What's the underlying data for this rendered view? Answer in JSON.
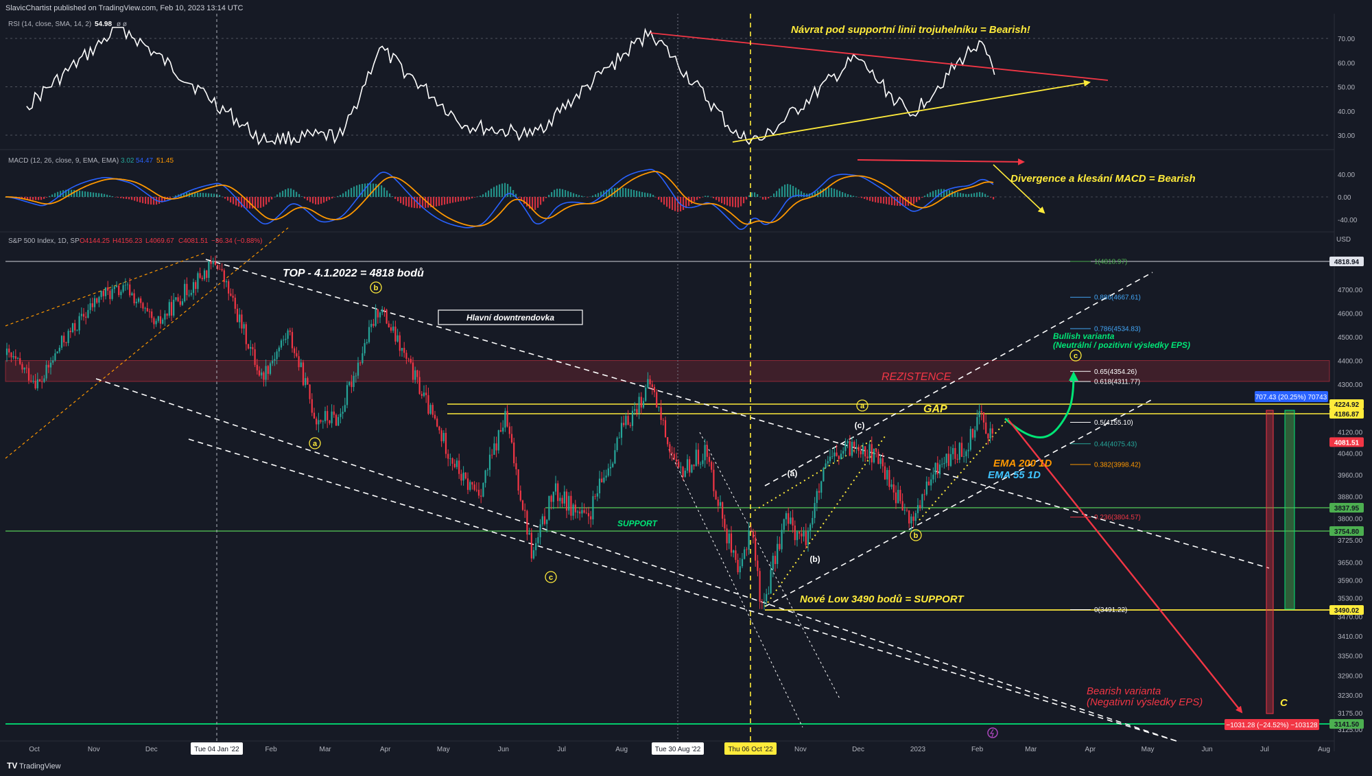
{
  "header": {
    "published": "SlavicChartist published on TradingView.com, Feb 10, 2023 13:14 UTC"
  },
  "footer": {
    "brand": "TradingView"
  },
  "rsi": {
    "legend_name": "RSI (14, close, SMA, 14, 2)",
    "legend_value": "54.98",
    "legend_extra": "ø ø",
    "ticks": [
      "70.00",
      "60.00",
      "50.00",
      "40.00",
      "30.00"
    ],
    "annotation": "Návrat pod supportní linii trojuhelníku = Bearish!"
  },
  "macd": {
    "legend_name": "MACD (12, 26, close, 9, EMA, EMA)",
    "legend_hist": "3.02",
    "legend_macd": "54.47",
    "legend_signal": "51.45",
    "ticks": [
      "40.00",
      "0.00",
      "-40.00"
    ],
    "annotation": "Divergence a klesání MACD = Bearish"
  },
  "price": {
    "legend_symbol": "S&P 500 Index, 1D, SP",
    "legend_o": "O4144.25",
    "legend_h": "H4156.23",
    "legend_l": "L4069.67",
    "legend_c": "C4081.51",
    "legend_chg": "−36.34 (−0.88%)",
    "currency": "USD",
    "ticks": [
      "4700.00",
      "4600.00",
      "4500.00",
      "4400.00",
      "4300.00",
      "4120.00",
      "4040.00",
      "3960.00",
      "3880.00",
      "3800.00",
      "3725.00",
      "3650.00",
      "3590.00",
      "3530.00",
      "3470.00",
      "3410.00",
      "3350.00",
      "3290.00",
      "3230.00",
      "3175.00",
      "3125.00"
    ],
    "badges": [
      {
        "label": "4818.94",
        "color": "#e0e3eb",
        "text_color": "#131722"
      },
      {
        "label": "4224.92",
        "color": "#ffeb3b",
        "text_color": "#131722"
      },
      {
        "label": "4186.87",
        "color": "#ffeb3b",
        "text_color": "#131722"
      },
      {
        "label": "4081.51",
        "color": "#f23645",
        "text_color": "#ffffff"
      },
      {
        "label": "3837.95",
        "color": "#4caf50",
        "text_color": "#131722"
      },
      {
        "label": "3754.80",
        "color": "#4caf50",
        "text_color": "#131722"
      },
      {
        "label": "3490.02",
        "color": "#ffeb3b",
        "text_color": "#131722"
      },
      {
        "label": "3141.50",
        "color": "#4caf50",
        "text_color": "#131722"
      }
    ],
    "measure_up": "707.43 (20.25%) 70743",
    "measure_down": "−1031.28 (−24.52%) −103128"
  },
  "fib": [
    {
      "label": "1(4818.97)",
      "color": "#4caf50"
    },
    {
      "label": "0.886(4667.61)",
      "color": "#42a5f5"
    },
    {
      "label": "0.786(4534.83)",
      "color": "#42a5f5"
    },
    {
      "label": "0.65(4354.26)",
      "color": "#ffffff"
    },
    {
      "label": "0.618(4311.77)",
      "color": "#ffffff"
    },
    {
      "label": "0.5(4155.10)",
      "color": "#ffffff"
    },
    {
      "label": "0.44(4075.43)",
      "color": "#26a69a"
    },
    {
      "label": "0.382(3998.42)",
      "color": "#ff9800"
    },
    {
      "label": "0.236(3804.57)",
      "color": "#f23645"
    },
    {
      "label": "0(3491.22)",
      "color": "#ffffff"
    }
  ],
  "annotations": {
    "top": "TOP - 4.1.2022 = 4818 bodů",
    "downtrend": "Hlavní downtrendovka",
    "resistance": "REZISTENCE",
    "support": "SUPPORT",
    "gap": "GAP",
    "ema200": "EMA 200 1D",
    "ema55": "EMA 55 1D",
    "new_low": "Nové Low 3490 bodů = SUPPORT",
    "bullish_title": "Bullish varianta",
    "bullish_sub": "(Neutrální / pozitivní výsledky EPS)",
    "bearish_title": "Bearish varianta",
    "bearish_sub": "(Negativní výsledky EPS)",
    "wave_c_big": "C",
    "waves": [
      "a",
      "b",
      "c",
      "a",
      "b",
      "c",
      "(a)",
      "(b)",
      "(c)"
    ]
  },
  "xaxis": {
    "ticks": [
      "Oct",
      "Nov",
      "Dec",
      "Feb",
      "Mar",
      "Apr",
      "May",
      "Jun",
      "Jul",
      "Aug",
      "Nov",
      "Dec",
      "2023",
      "Feb",
      "Mar",
      "Apr",
      "May",
      "Jun",
      "Jul",
      "Aug"
    ],
    "highlights": [
      "Tue 04 Jan '22",
      "Tue 30 Aug '22",
      "Thu 06 Oct '22"
    ]
  },
  "colors": {
    "bg": "#161a25",
    "up": "#26a69a",
    "down": "#f23645",
    "yellow": "#ffeb3b",
    "green": "#4caf50",
    "bright_green": "#00e676",
    "orange": "#ff9800",
    "cyan": "#40c4ff",
    "macd_blue": "#2962ff",
    "resistance_fill": "#f23645"
  },
  "chart_data": {
    "type": "line",
    "title": "S&P 500 Index, 1D, SP",
    "ylim": [
      3125,
      4818.94
    ],
    "price_path": {
      "x": [
        "2021-09-27",
        "2021-10-04",
        "2021-10-15",
        "2021-11-05",
        "2021-11-19",
        "2021-12-03",
        "2021-12-17",
        "2022-01-04",
        "2022-01-27",
        "2022-02-10",
        "2022-02-24",
        "2022-03-08",
        "2022-03-29",
        "2022-04-12",
        "2022-04-28",
        "2022-05-12",
        "2022-05-20",
        "2022-06-02",
        "2022-06-16",
        "2022-06-27",
        "2022-07-14",
        "2022-08-01",
        "2022-08-16",
        "2022-08-30",
        "2022-09-13",
        "2022-09-20",
        "2022-09-30",
        "2022-10-06",
        "2022-10-12",
        "2022-10-24",
        "2022-11-03",
        "2022-11-15",
        "2022-12-01",
        "2022-12-13",
        "2022-12-28",
        "2023-01-12",
        "2023-01-26",
        "2023-02-02",
        "2023-02-10"
      ],
      "y": [
        4350,
        4300,
        4470,
        4680,
        4700,
        4540,
        4680,
        4818,
        4330,
        4520,
        4170,
        4170,
        4630,
        4400,
        4130,
        3930,
        3900,
        4175,
        3667,
        3900,
        3790,
        4120,
        4305,
        3960,
        4050,
        3855,
        3585,
        3790,
        3491,
        3800,
        3720,
        4000,
        4080,
        4000,
        3780,
        4000,
        4060,
        4195,
        4081
      ]
    },
    "rsi_path": {
      "x": [
        "2021-09-27",
        "2021-11-15",
        "2022-01-27",
        "2022-03-10",
        "2022-03-29",
        "2022-05-12",
        "2022-06-16",
        "2022-08-16",
        "2022-09-30",
        "2022-10-12",
        "2022-11-30",
        "2022-12-28",
        "2023-02-02",
        "2023-02-10"
      ],
      "y": [
        42,
        75,
        28,
        30,
        66,
        34,
        30,
        73,
        29,
        28,
        62,
        38,
        69,
        54.98
      ]
    },
    "macd": {
      "macd": 54.47,
      "signal": 51.45,
      "histogram": 3.02
    },
    "levels": {
      "top": 4818.94,
      "resistance_zone": [
        4311.77,
        4400
      ],
      "gap": [
        4186.87,
        4224.92
      ],
      "support_1": 3837.95,
      "support_2": 3754.8,
      "new_low": 3490.02,
      "bearish_target": 3141.5
    },
    "scenarios": {
      "bullish_target": 4311.77,
      "bearish_target": 3141.5,
      "up_move": "707.43 (20.25%)",
      "down_move": "−1031.28 (−24.52%)"
    },
    "grid": false,
    "legend": "top-left"
  }
}
